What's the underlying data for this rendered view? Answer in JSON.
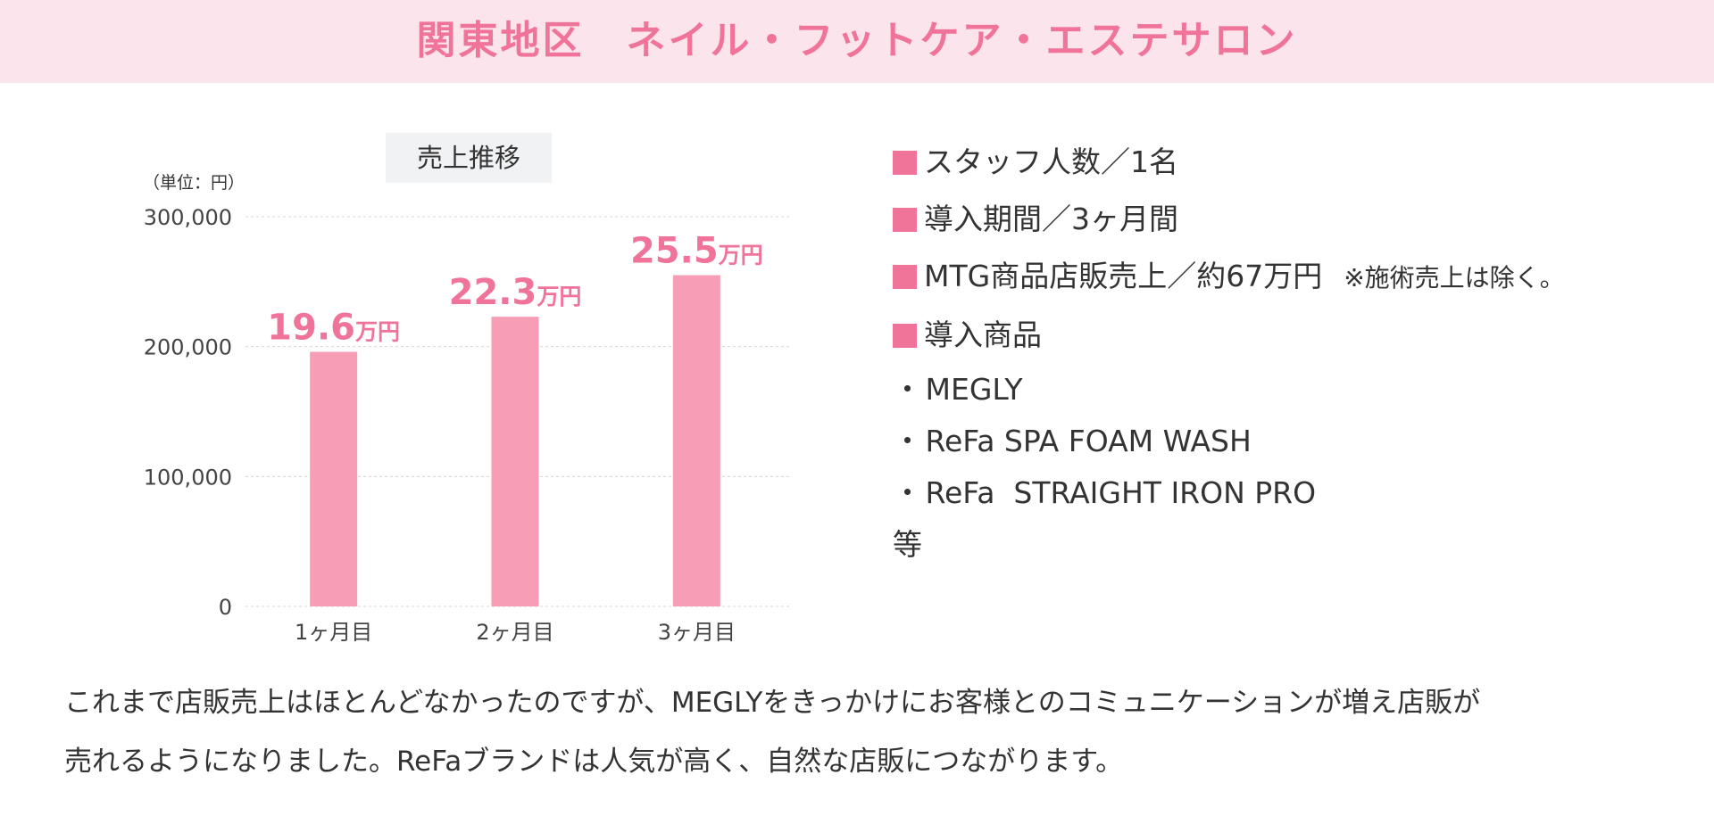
{
  "banner": {
    "title": "関東地区　ネイル・フットケア・エステサロン"
  },
  "chart_data": {
    "type": "bar",
    "title": "売上推移",
    "unit_label": "（単位：円）",
    "categories": [
      "1ヶ月目",
      "2ヶ月目",
      "3ヶ月目"
    ],
    "values": [
      196000,
      223000,
      255000
    ],
    "data_labels": [
      {
        "value": "19.6",
        "unit": "万円"
      },
      {
        "value": "22.3",
        "unit": "万円"
      },
      {
        "value": "25.5",
        "unit": "万円"
      }
    ],
    "y_ticks": [
      {
        "value": 0,
        "label": "0"
      },
      {
        "value": 100000,
        "label": "100,000"
      },
      {
        "value": 200000,
        "label": "200,000"
      },
      {
        "value": 300000,
        "label": "300,000"
      }
    ],
    "ylim": [
      0,
      300000
    ],
    "grid": true,
    "bar_color": "#f79db6",
    "label_color": "#f0739a"
  },
  "info": {
    "staff": "スタッフ人数／1名",
    "period": "導入期間／3ヶ月間",
    "sales": "MTG商品店販売上／約67万円",
    "sales_note": "※施術売上は除く。",
    "products_heading": "導入商品",
    "products": [
      "MEGLY",
      "ReFa SPA FOAM WASH",
      "ReFa  STRAIGHT IRON PRO"
    ],
    "bullet": "・",
    "etc": "等"
  },
  "description": {
    "line1": "これまで店販売上はほとんどなかったのですが、MEGLYをきっかけにお客様とのコミュニケーションが増え店販が",
    "line2": "売れるようになりました。ReFaブランドは人気が高く、自然な店販につながります。"
  },
  "colors": {
    "accent": "#f0739a",
    "banner_bg": "#fce4ec",
    "chart_title_bg": "#f1f2f3"
  }
}
